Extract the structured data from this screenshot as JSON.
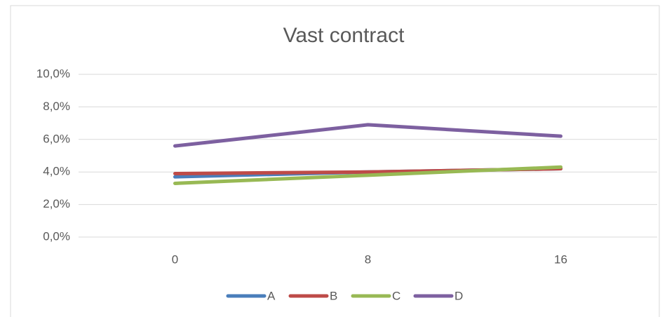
{
  "chart_data": {
    "type": "line",
    "title": "Vast contract",
    "categories": [
      "0",
      "8",
      "16"
    ],
    "series": [
      {
        "name": "A",
        "color": "#4a7ebb",
        "values": [
          3.7,
          4.0,
          4.2
        ]
      },
      {
        "name": "B",
        "color": "#be4b48",
        "values": [
          3.9,
          4.0,
          4.2
        ]
      },
      {
        "name": "C",
        "color": "#98b954",
        "values": [
          3.3,
          3.8,
          4.3
        ]
      },
      {
        "name": "D",
        "color": "#7d60a0",
        "values": [
          5.6,
          6.9,
          6.2
        ]
      }
    ],
    "ylim": [
      0,
      10
    ],
    "yticks": [
      {
        "value": 0,
        "label": "0,0%"
      },
      {
        "value": 2,
        "label": "2,0%"
      },
      {
        "value": 4,
        "label": "4,0%"
      },
      {
        "value": 6,
        "label": "6,0%"
      },
      {
        "value": 8,
        "label": "8,0%"
      },
      {
        "value": 10,
        "label": "10,0%"
      }
    ],
    "grid": true,
    "legend": "bottom"
  }
}
